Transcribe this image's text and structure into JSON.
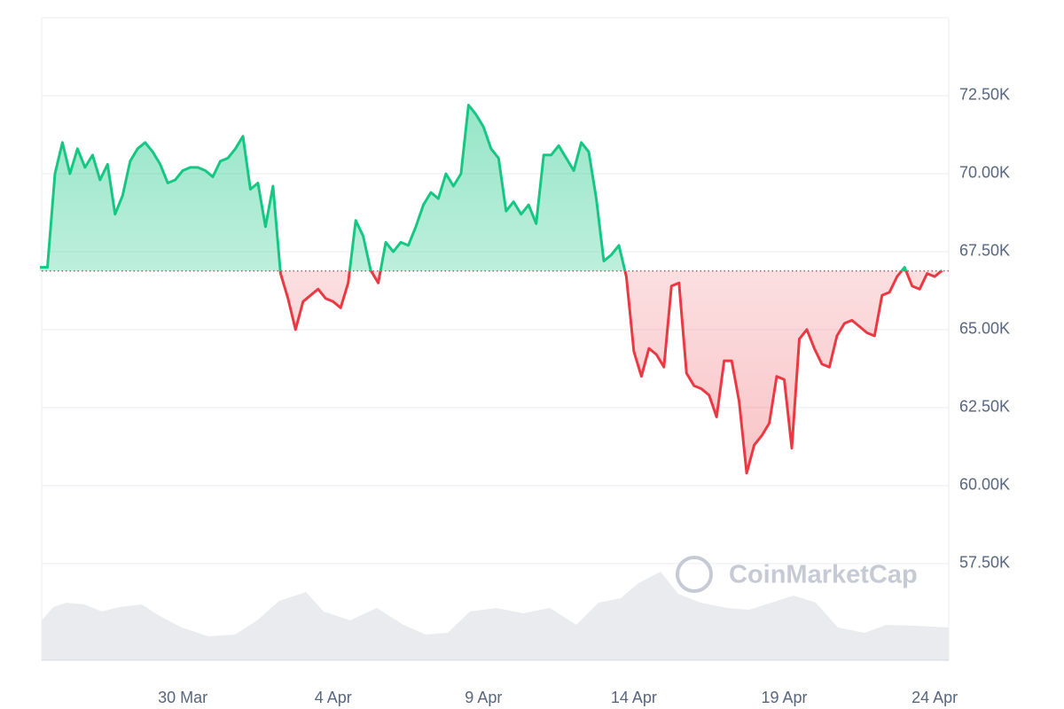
{
  "chart_data": {
    "type": "line",
    "watermark": "CoinMarketCap",
    "categories": [
      null,
      null,
      null,
      null,
      null,
      null,
      null,
      null,
      null,
      null,
      null,
      null,
      null,
      null,
      null,
      null,
      null,
      null,
      null,
      "30 Mar",
      null,
      null,
      null,
      null,
      null,
      null,
      null,
      null,
      null,
      null,
      null,
      null,
      null,
      null,
      null,
      null,
      null,
      null,
      null,
      "4 Apr",
      null,
      null,
      null,
      null,
      null,
      null,
      null,
      null,
      null,
      null,
      null,
      null,
      null,
      null,
      null,
      null,
      null,
      null,
      null,
      "9 Apr",
      null,
      null,
      null,
      null,
      null,
      null,
      null,
      null,
      null,
      null,
      null,
      null,
      null,
      null,
      null,
      null,
      null,
      null,
      null,
      "14 Apr",
      null,
      null,
      null,
      null,
      null,
      null,
      null,
      null,
      null,
      null,
      null,
      null,
      null,
      null,
      null,
      null,
      null,
      null,
      null,
      "19 Apr",
      null,
      null,
      null,
      null,
      null,
      null,
      null,
      null,
      null,
      null,
      null,
      null,
      null,
      null,
      null,
      null,
      null,
      null,
      null,
      "24 Apr",
      null
    ],
    "values": [
      67000,
      67000,
      70000,
      71000,
      70000,
      70800,
      70200,
      70600,
      69800,
      70300,
      68700,
      69300,
      70400,
      70800,
      71000,
      70700,
      70300,
      69700,
      69800,
      70100,
      70200,
      70200,
      70100,
      69900,
      70400,
      70500,
      70800,
      71200,
      69500,
      69700,
      68300,
      69600,
      66800,
      66000,
      65000,
      65900,
      66100,
      66300,
      66000,
      65900,
      65700,
      66500,
      68500,
      68000,
      66900,
      66500,
      67800,
      67500,
      67800,
      67700,
      68300,
      69000,
      69400,
      69200,
      70000,
      69600,
      70000,
      72200,
      71900,
      71500,
      70800,
      70500,
      68800,
      69100,
      68700,
      69000,
      68400,
      70600,
      70600,
      70900,
      70500,
      70100,
      71000,
      70700,
      69200,
      67200,
      67400,
      67700,
      66700,
      64300,
      63500,
      64400,
      64200,
      63800,
      66400,
      66500,
      63600,
      63200,
      63100,
      62900,
      62200,
      64000,
      64000,
      62700,
      60400,
      61300,
      61600,
      62000,
      63500,
      63400,
      61200,
      64700,
      65000,
      64400,
      63900,
      63800,
      64800,
      65200,
      65300,
      65100,
      64900,
      64800,
      66100,
      66200,
      66700,
      67000,
      66400,
      66300,
      66800,
      66700,
      66900
    ],
    "baseline": 66880,
    "color_up": "#16c784",
    "color_down": "#ea3943",
    "ylim": [
      54400,
      75000
    ],
    "yticks": [
      {
        "value": 57500,
        "label": "57.50K"
      },
      {
        "value": 60000,
        "label": "60.00K"
      },
      {
        "value": 62500,
        "label": "62.50K"
      },
      {
        "value": 65000,
        "label": "65.00K"
      },
      {
        "value": 67500,
        "label": "67.50K"
      },
      {
        "value": 70000,
        "label": "70.00K"
      },
      {
        "value": 72500,
        "label": "72.50K"
      }
    ],
    "grid": true
  }
}
